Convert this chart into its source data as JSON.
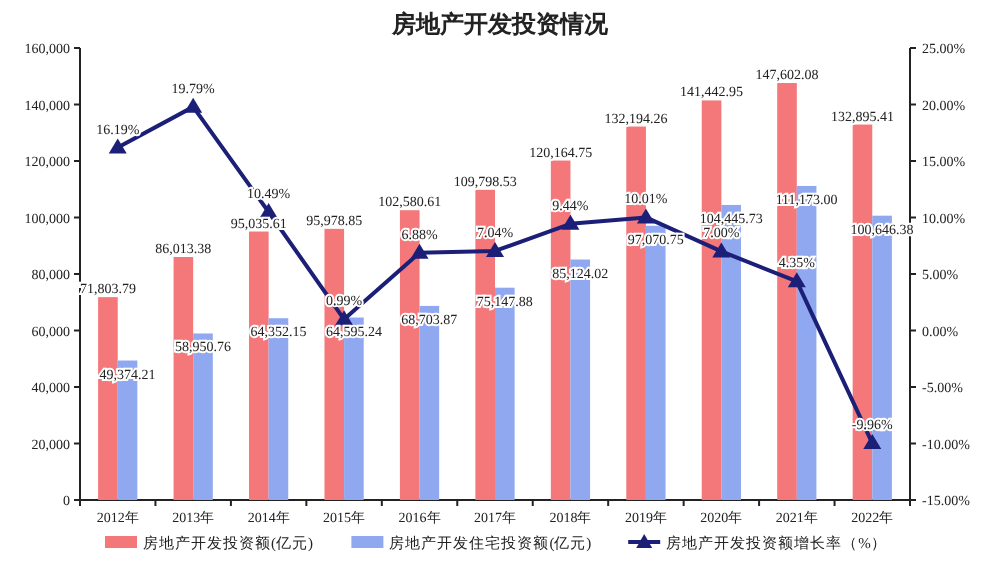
{
  "chart_data": {
    "type": "bar",
    "title": "房地产开发投资情况",
    "categories": [
      "2012年",
      "2013年",
      "2014年",
      "2015年",
      "2016年",
      "2017年",
      "2018年",
      "2019年",
      "2020年",
      "2021年",
      "2022年"
    ],
    "series": [
      {
        "name": "房地产开发投资额(亿元)",
        "color": "#f4777a",
        "values": [
          71803.79,
          86013.38,
          95035.61,
          95978.85,
          102580.61,
          109798.53,
          120164.75,
          132194.26,
          141442.95,
          147602.08,
          132895.41
        ],
        "value_labels": [
          "71,803.79",
          "86,013.38",
          "95,035.61",
          "95,978.85",
          "102,580.61",
          "109,798.53",
          "120,164.75",
          "132,194.26",
          "141,442.95",
          "147,602.08",
          "132,895.41"
        ]
      },
      {
        "name": "房地产开发住宅投资额(亿元)",
        "color": "#8fa8f0",
        "values": [
          49374.21,
          58950.76,
          64352.15,
          64595.24,
          68703.87,
          75147.88,
          85124.02,
          97070.75,
          104445.73,
          111173.0,
          100646.38
        ],
        "value_labels": [
          "49,374.21",
          "58,950.76",
          "64,352.15",
          "64,595.24",
          "68,703.87",
          "75,147.88",
          "85,124.02",
          "97,070.75",
          "104,445.73",
          "111,173.00",
          "100,646.38"
        ]
      },
      {
        "name": "房地产开发投资额增长率（%）",
        "type": "line",
        "axis": "y2",
        "color": "#1c1f78",
        "marker": "triangle",
        "values": [
          16.19,
          19.79,
          10.49,
          0.99,
          6.88,
          7.04,
          9.44,
          10.01,
          7.0,
          4.35,
          -9.96
        ],
        "value_labels": [
          "16.19%",
          "19.79%",
          "10.49%",
          "0.99%",
          "6.88%",
          "7.04%",
          "9.44%",
          "10.01%",
          "7.00%",
          "4.35%",
          "-9.96%"
        ]
      }
    ],
    "ylim": [
      0,
      160000
    ],
    "yticks": [
      {
        "value": 0,
        "label": "0"
      },
      {
        "value": 20000,
        "label": "20,000"
      },
      {
        "value": 40000,
        "label": "40,000"
      },
      {
        "value": 60000,
        "label": "60,000"
      },
      {
        "value": 80000,
        "label": "80,000"
      },
      {
        "value": 100000,
        "label": "100,000"
      },
      {
        "value": 120000,
        "label": "120,000"
      },
      {
        "value": 140000,
        "label": "140,000"
      },
      {
        "value": 160000,
        "label": "160,000"
      }
    ],
    "y2lim": [
      -15,
      25
    ],
    "y2ticks": [
      {
        "value": -15,
        "label": "-15.00%"
      },
      {
        "value": -10,
        "label": "-10.00%"
      },
      {
        "value": -5,
        "label": "-5.00%"
      },
      {
        "value": 0,
        "label": "0.00%"
      },
      {
        "value": 5,
        "label": "5.00%"
      },
      {
        "value": 10,
        "label": "10.00%"
      },
      {
        "value": 15,
        "label": "15.00%"
      },
      {
        "value": 20,
        "label": "20.00%"
      },
      {
        "value": 25,
        "label": "25.00%"
      }
    ],
    "legend": "bottom"
  }
}
